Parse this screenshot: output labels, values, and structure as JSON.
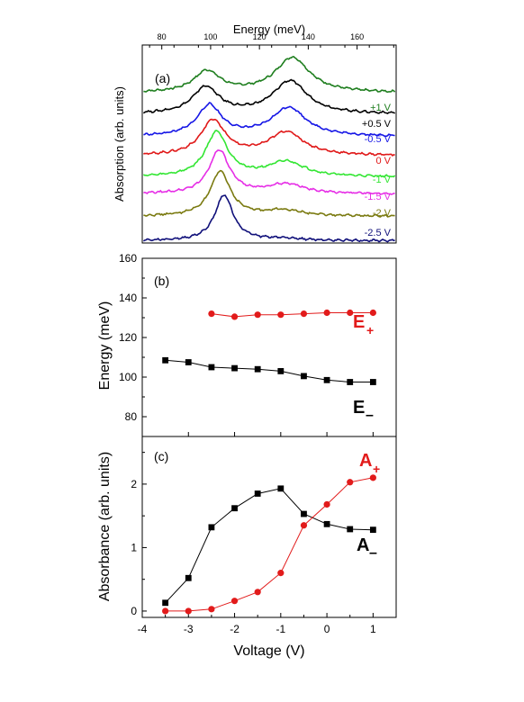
{
  "chart_data": [
    {
      "type": "line",
      "panel_label": "(a)",
      "xlabel": "Energy (meV)",
      "ylabel": "Absorption (arb. units)",
      "xlim": [
        72,
        176
      ],
      "x_ticks": [
        80,
        100,
        120,
        140,
        160
      ],
      "x_axis_position": "top",
      "ylim": [
        0,
        9.3
      ],
      "y_ticks": [],
      "legend_placement": "right, one label per curve",
      "series": [
        {
          "name": "+1 V",
          "color": "#1e7e1e",
          "offset": 7.05,
          "p1": {
            "x": 98.5,
            "h": 1.0
          },
          "p2": {
            "x": 133.5,
            "h": 1.65
          },
          "w1": 6.5,
          "w2": 8.5
        },
        {
          "name": "+0.5 V",
          "color": "#000000",
          "offset": 6.05,
          "p1": {
            "x": 98.0,
            "h": 1.25
          },
          "p2": {
            "x": 132.5,
            "h": 1.55
          },
          "w1": 6.5,
          "w2": 8.5
        },
        {
          "name": "-0.5 V",
          "color": "#1515e6",
          "offset": 5.0,
          "p1": {
            "x": 99.5,
            "h": 1.45
          },
          "p2": {
            "x": 132.0,
            "h": 1.35
          },
          "w1": 6.0,
          "w2": 8.5
        },
        {
          "name": "0 V",
          "color": "#e01818",
          "offset": 4.1,
          "p1": {
            "x": 101.0,
            "h": 1.65
          },
          "p2": {
            "x": 131.0,
            "h": 1.1
          },
          "w1": 6.0,
          "w2": 8.5
        },
        {
          "name": "-1 V",
          "color": "#33e633",
          "offset": 3.1,
          "p1": {
            "x": 102.5,
            "h": 2.1
          },
          "p2": {
            "x": 131.0,
            "h": 0.7
          },
          "w1": 5.5,
          "w2": 9.0
        },
        {
          "name": "-1.5 V",
          "color": "#e62ee6",
          "offset": 2.3,
          "p1": {
            "x": 103.5,
            "h": 2.05
          },
          "p2": {
            "x": 131.0,
            "h": 0.45
          },
          "w1": 5.0,
          "w2": 9.0
        },
        {
          "name": "-2 V",
          "color": "#7a7a10",
          "offset": 1.25,
          "p1": {
            "x": 104.0,
            "h": 2.1
          },
          "p2": {
            "x": 130.0,
            "h": 0.28
          },
          "w1": 5.0,
          "w2": 9.0
        },
        {
          "name": "-2.5 V",
          "color": "#10107a",
          "offset": 0.1,
          "p1": {
            "x": 105.5,
            "h": 2.15
          },
          "p2": {
            "x": 130.0,
            "h": 0.1
          },
          "w1": 4.5,
          "w2": 9.0
        }
      ]
    },
    {
      "type": "line",
      "panel_label": "(b)",
      "xlabel": "",
      "ylabel": "Energy (meV)",
      "xlim": [
        -4,
        1.5
      ],
      "ylim": [
        70,
        160
      ],
      "y_ticks": [
        80,
        100,
        120,
        140,
        160
      ],
      "series": [
        {
          "name": "E+",
          "label_main": "E",
          "label_sub": "+",
          "color": "#e21b1b",
          "marker": "circle",
          "x": [
            -2.5,
            -2,
            -1.5,
            -1,
            -0.5,
            0,
            0.5,
            1
          ],
          "y": [
            132,
            130.5,
            131.5,
            131.5,
            132,
            132.5,
            132.5,
            132.5
          ]
        },
        {
          "name": "E-",
          "label_main": "E",
          "label_sub": "–",
          "color": "#000000",
          "marker": "square",
          "x": [
            -3.5,
            -3,
            -2.5,
            -2,
            -1.5,
            -1,
            -0.5,
            0,
            0.5,
            1
          ],
          "y": [
            108.5,
            107.5,
            105,
            104.5,
            104,
            103,
            100.5,
            98.5,
            97.5,
            97.5
          ]
        }
      ]
    },
    {
      "type": "line",
      "panel_label": "(c)",
      "xlabel": "Voltage (V)",
      "ylabel": "Absorbance (arb. units)",
      "xlim": [
        -4,
        1.5
      ],
      "x_ticks": [
        -4,
        -3,
        -2,
        -1,
        0,
        1
      ],
      "ylim": [
        -0.1,
        2.75
      ],
      "y_ticks": [
        0,
        1,
        2
      ],
      "series": [
        {
          "name": "A+",
          "label_main": "A",
          "label_sub": "+",
          "color": "#e21b1b",
          "marker": "circle",
          "x": [
            -3.5,
            -3,
            -2.5,
            -2,
            -1.5,
            -1,
            -0.5,
            0,
            0.5,
            1
          ],
          "y": [
            0.0,
            0.0,
            0.03,
            0.16,
            0.3,
            0.6,
            1.35,
            1.68,
            2.03,
            2.1
          ]
        },
        {
          "name": "A-",
          "label_main": "A",
          "label_sub": "–",
          "color": "#000000",
          "marker": "square",
          "x": [
            -3.5,
            -3,
            -2.5,
            -2,
            -1.5,
            -1,
            -0.5,
            0,
            0.5,
            1
          ],
          "y": [
            0.13,
            0.52,
            1.32,
            1.62,
            1.85,
            1.93,
            1.53,
            1.37,
            1.29,
            1.28
          ]
        }
      ]
    }
  ]
}
